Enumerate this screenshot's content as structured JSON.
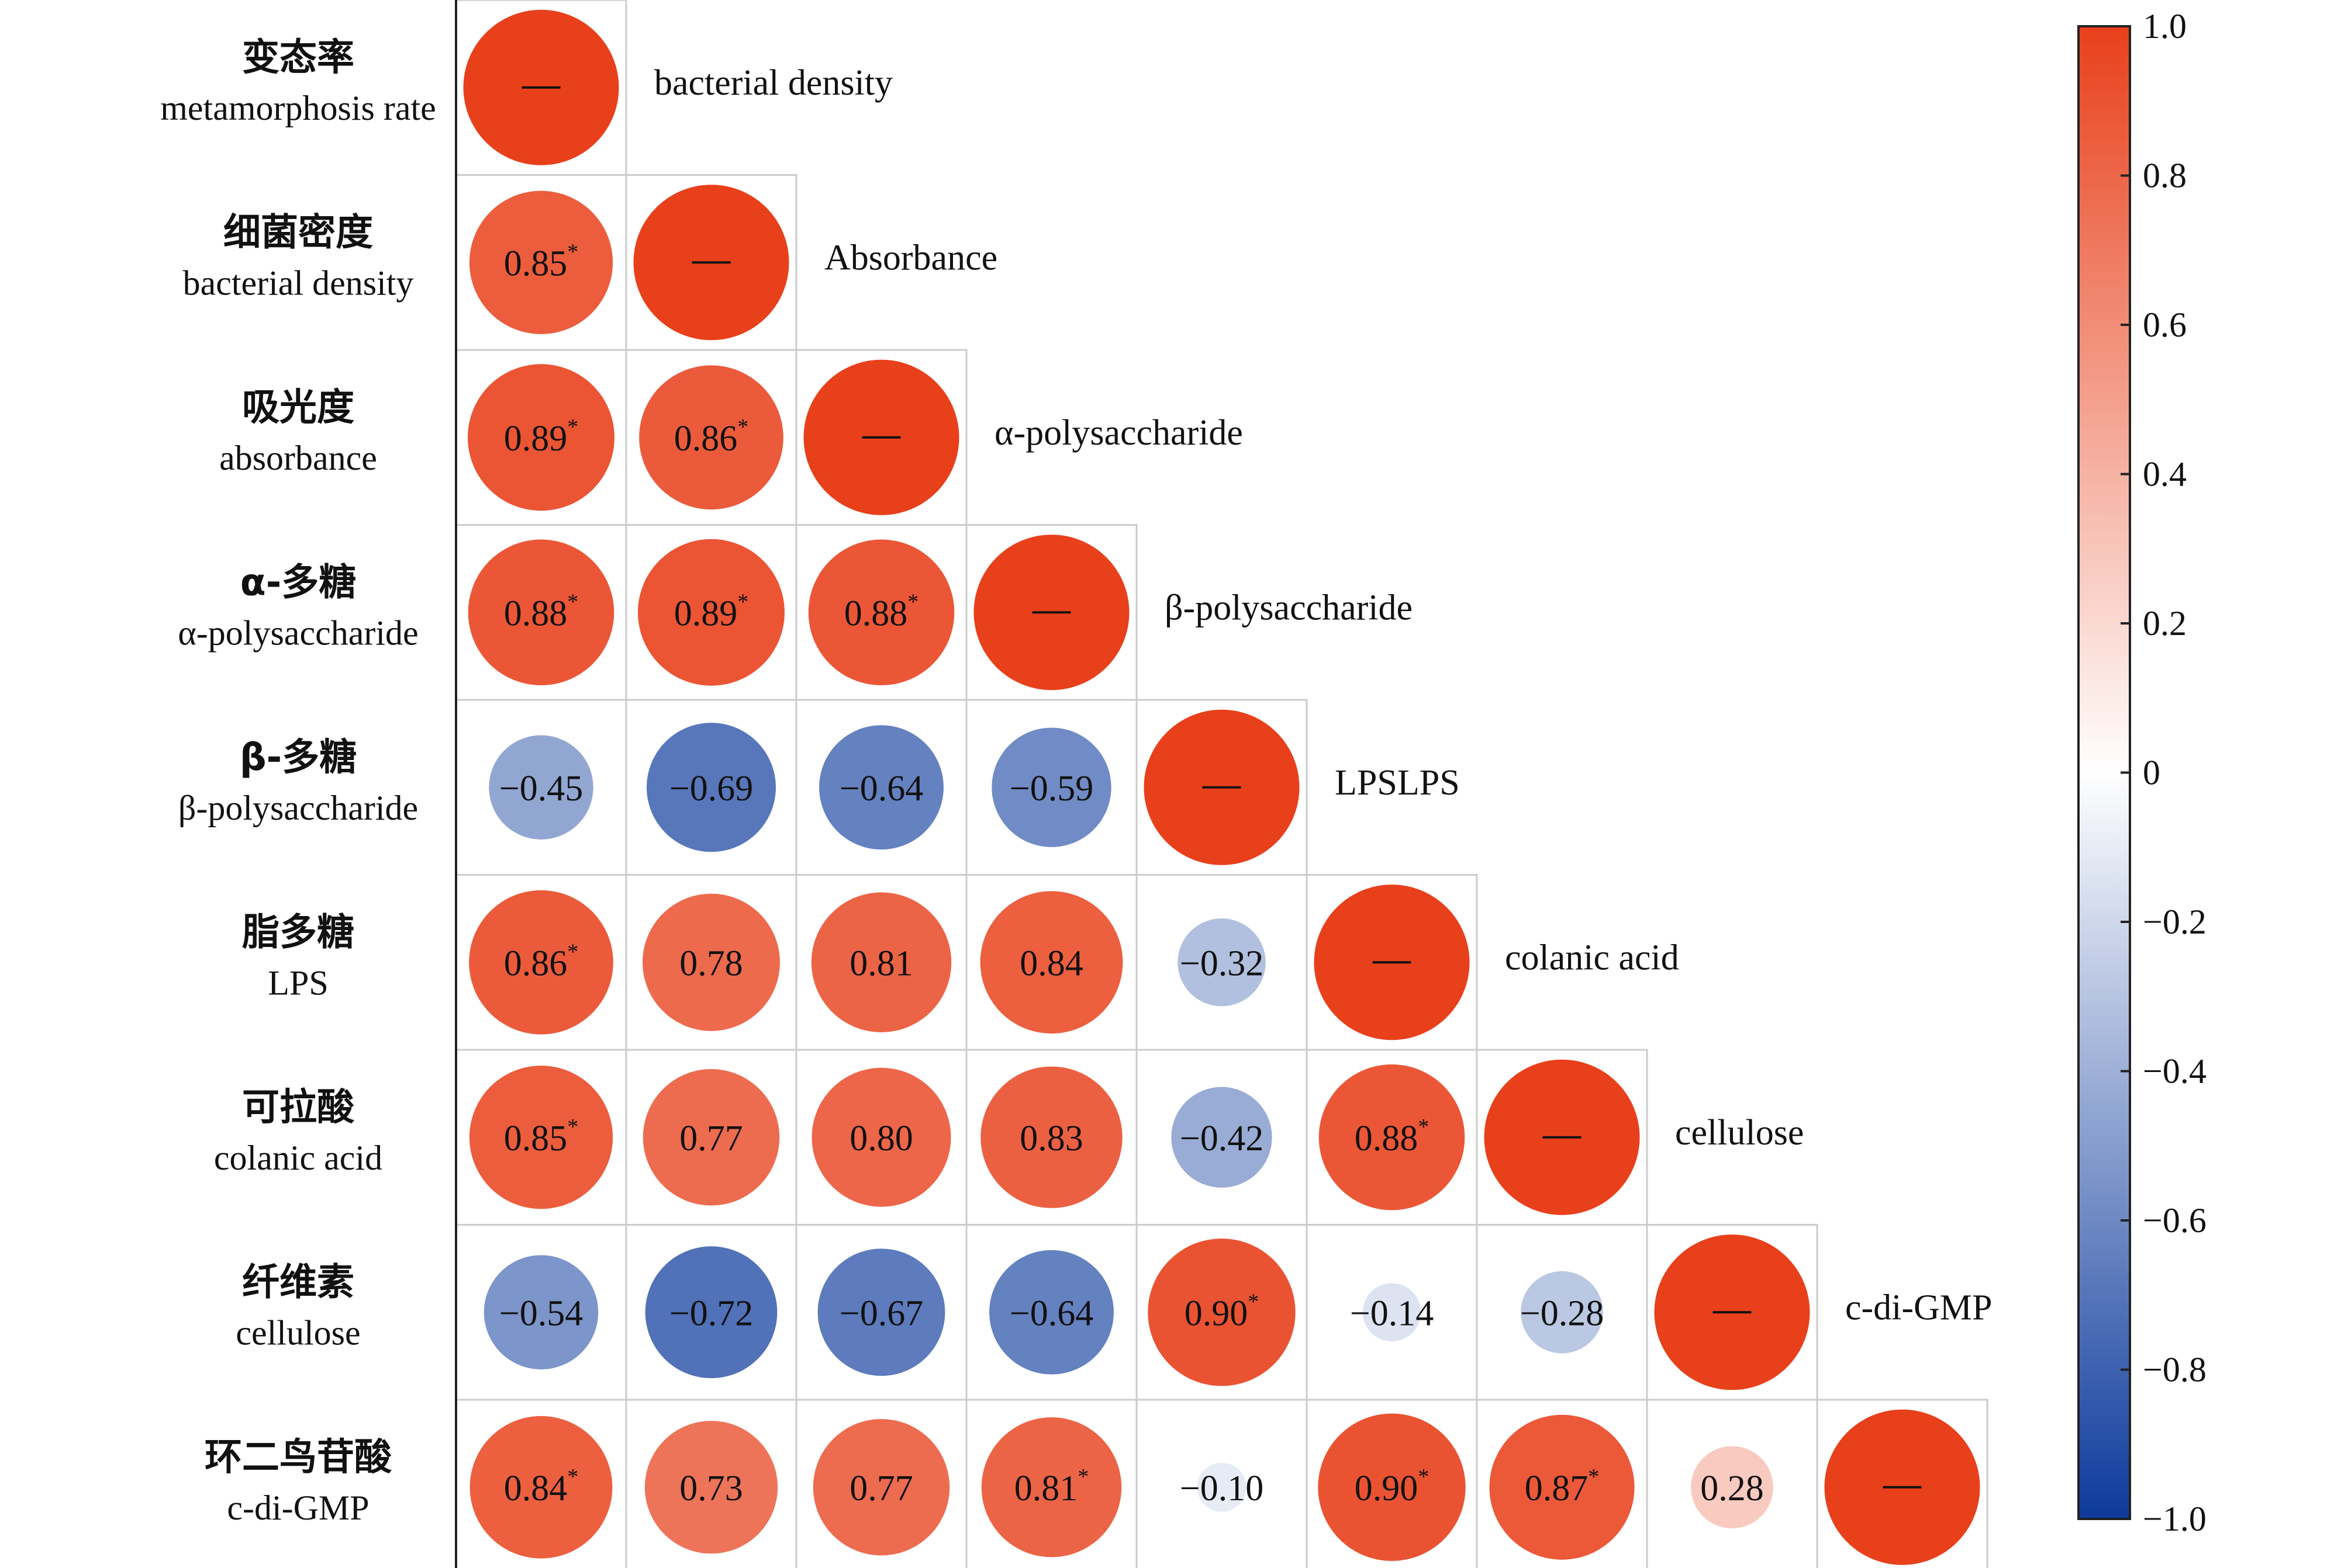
{
  "chart_data": {
    "type": "heatmap",
    "variables": [
      {
        "zh": "变态率",
        "en": "metamorphosis rate",
        "diag": "bacterial density"
      },
      {
        "zh": "细菌密度",
        "en": "bacterial density",
        "diag": "Absorbance"
      },
      {
        "zh": "吸光度",
        "en": "absorbance",
        "diag": "α-polysaccharide"
      },
      {
        "zh": "α-多糖",
        "en": "α-polysaccharide",
        "diag": "β-polysaccharide"
      },
      {
        "zh": "β-多糖",
        "en": "β-polysaccharide",
        "diag": "LPSLPS"
      },
      {
        "zh": "脂多糖",
        "en": "LPS",
        "diag": "colanic acid"
      },
      {
        "zh": "可拉酸",
        "en": "colanic acid",
        "diag": "cellulose"
      },
      {
        "zh": "纤维素",
        "en": "cellulose",
        "diag": "c-di-GMP"
      },
      {
        "zh": "环二鸟苷酸",
        "en": "c-di-GMP",
        "diag": ""
      }
    ],
    "diagonal_mark": "—",
    "matrix": [
      [
        1
      ],
      [
        0.85,
        1
      ],
      [
        0.89,
        0.86,
        1
      ],
      [
        0.88,
        0.89,
        0.88,
        1
      ],
      [
        -0.45,
        -0.69,
        -0.64,
        -0.59,
        1
      ],
      [
        0.86,
        0.78,
        0.81,
        0.84,
        -0.32,
        1
      ],
      [
        0.85,
        0.77,
        0.8,
        0.83,
        -0.42,
        0.88,
        1
      ],
      [
        -0.54,
        -0.72,
        -0.67,
        -0.64,
        0.9,
        -0.14,
        -0.28,
        1
      ],
      [
        0.84,
        0.73,
        0.77,
        0.81,
        -0.1,
        0.9,
        0.87,
        0.28,
        1
      ]
    ],
    "labels": [
      [
        ""
      ],
      [
        "0.85",
        ""
      ],
      [
        "0.89",
        "0.86",
        ""
      ],
      [
        "0.88",
        "0.89",
        "0.88",
        ""
      ],
      [
        "−0.45",
        "−0.69",
        "−0.64",
        "−0.59",
        ""
      ],
      [
        "0.86",
        "0.78",
        "0.81",
        "0.84",
        "−0.32",
        ""
      ],
      [
        "0.85",
        "0.77",
        "0.80",
        "0.83",
        "−0.42",
        "0.88",
        ""
      ],
      [
        "−0.54",
        "−0.72",
        "−0.67",
        "−0.64",
        "0.90",
        "−0.14",
        "−0.28",
        ""
      ],
      [
        "0.84",
        "0.73",
        "0.77",
        "0.81",
        "−0.10",
        "0.90",
        "0.87",
        "0.28",
        ""
      ]
    ],
    "significant": [
      [
        false
      ],
      [
        true,
        false
      ],
      [
        true,
        true,
        false
      ],
      [
        true,
        true,
        true,
        false
      ],
      [
        false,
        false,
        false,
        false,
        false
      ],
      [
        true,
        false,
        false,
        false,
        false,
        false
      ],
      [
        true,
        false,
        false,
        false,
        false,
        true,
        false
      ],
      [
        false,
        false,
        false,
        false,
        true,
        false,
        false,
        false
      ],
      [
        true,
        false,
        false,
        true,
        false,
        true,
        true,
        false,
        false
      ]
    ],
    "significance_mark": "*",
    "colorbar": {
      "range": [
        -1,
        1
      ],
      "ticks": [
        "1.0",
        "0.8",
        "0.6",
        "0.4",
        "0.2",
        "0",
        "−0.2",
        "−0.4",
        "−0.6",
        "−0.8",
        "−1.0"
      ],
      "tick_values": [
        1.0,
        0.8,
        0.6,
        0.4,
        0.2,
        0,
        -0.2,
        -0.4,
        -0.6,
        -0.8,
        -1.0
      ],
      "colors": {
        "negative": "#0d3a9c",
        "neutral": "#ffffff",
        "positive": "#e8401b"
      }
    }
  }
}
